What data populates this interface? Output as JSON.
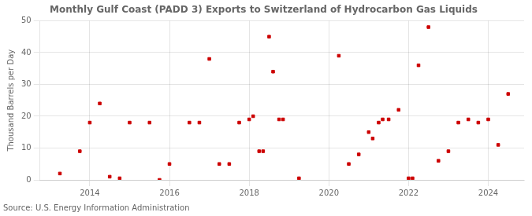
{
  "chart_data": {
    "type": "scatter",
    "title": "Monthly Gulf Coast (PADD 3) Exports to Switzerland of Hydrocarbon Gas Liquids",
    "ylabel": "Thousand Barrels per Day",
    "annotation": "Source: U.S. Energy Information Administration",
    "x": [
      2013.25,
      2013.75,
      2014.0,
      2014.25,
      2014.5,
      2014.75,
      2015.0,
      2015.5,
      2015.75,
      2016.0,
      2016.5,
      2016.75,
      2017.0,
      2017.25,
      2017.5,
      2017.75,
      2018.0,
      2018.1,
      2018.25,
      2018.35,
      2018.5,
      2018.6,
      2018.75,
      2018.85,
      2019.25,
      2020.25,
      2020.5,
      2020.75,
      2021.0,
      2021.1,
      2021.25,
      2021.35,
      2021.5,
      2021.75,
      2022.0,
      2022.1,
      2022.25,
      2022.5,
      2022.75,
      2023.0,
      2023.25,
      2023.5,
      2023.75,
      2024.0,
      2024.25,
      2024.5
    ],
    "values": [
      2,
      9,
      18,
      24,
      1,
      0.5,
      18,
      18,
      0,
      5,
      18,
      18,
      38,
      5,
      5,
      18,
      19,
      20,
      9,
      9,
      45,
      34,
      19,
      19,
      0.5,
      39,
      5,
      8,
      15,
      13,
      18,
      19,
      19,
      22,
      0.5,
      0.5,
      36,
      48,
      6,
      9,
      18,
      19,
      18,
      19,
      11,
      27
    ],
    "color": "#cc0000",
    "marker": "square",
    "xlim": [
      2012.75,
      2024.9
    ],
    "xticks": [
      2014,
      2016,
      2018,
      2020,
      2022,
      2024
    ],
    "ylim": [
      0,
      50
    ],
    "yticks": [
      0,
      10,
      20,
      30,
      40,
      50
    ],
    "grid": true
  }
}
